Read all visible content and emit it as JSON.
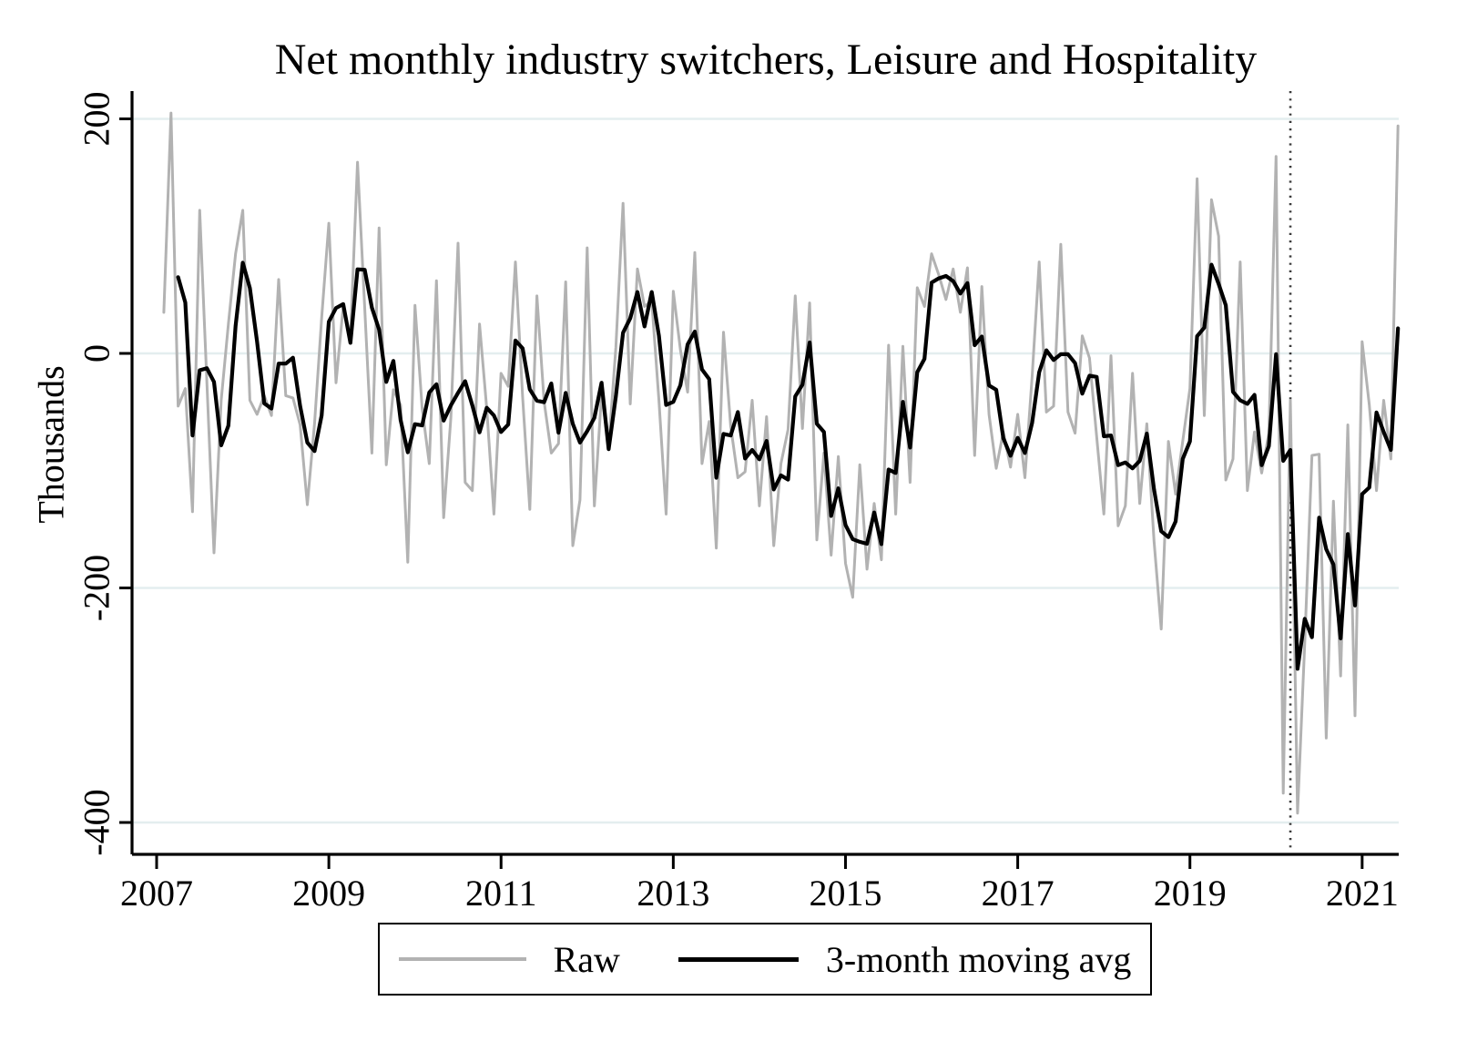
{
  "page": {
    "background": "#ffffff"
  },
  "chart_data": {
    "type": "line",
    "title": "Net monthly industry switchers, Leisure and Hospitality",
    "xlabel": "",
    "ylabel": "Thousands",
    "x_unit": "month",
    "x_start": "2007-02",
    "x_end": "2021-06",
    "x_tick_labels": [
      "2007",
      "2009",
      "2011",
      "2013",
      "2015",
      "2017",
      "2019",
      "2021"
    ],
    "y_tick_labels": [
      "200",
      "0",
      "-200",
      "-400"
    ],
    "y_ticks": [
      200,
      0,
      -200,
      -400
    ],
    "ylim": [
      -430,
      228
    ],
    "grid": true,
    "gridline_color": "#e4eeef",
    "axis_color": "#000000",
    "legend_position": "bottom",
    "vline": {
      "date": "2020-03",
      "style": "dotted",
      "color": "#3a3a3a"
    },
    "series": [
      {
        "name": "Raw",
        "color": "#b2b2b2",
        "start": "2007-02",
        "values": [
          35,
          205,
          -45,
          -30,
          -135,
          122,
          -25,
          -170,
          -40,
          25,
          85,
          122,
          -40,
          -52,
          -36,
          -53,
          63,
          -36,
          -38,
          -61,
          -129,
          -60,
          30,
          111,
          -25,
          40,
          12,
          163,
          39,
          -85,
          107,
          -95,
          -31,
          -44,
          -178,
          41,
          -47,
          -94,
          62,
          -140,
          -55,
          94,
          -110,
          -117,
          25,
          -47,
          -137,
          -17,
          -28,
          78,
          -37,
          -133,
          49,
          -41,
          -85,
          -77,
          61,
          -164,
          -125,
          90,
          -130,
          -35,
          -80,
          5,
          128,
          -43,
          72,
          40,
          45,
          -40,
          -137,
          53,
          3,
          -33,
          86,
          -94,
          -58,
          -166,
          18,
          -62,
          -106,
          -101,
          -40,
          -130,
          -54,
          -164,
          -94,
          -65,
          49,
          -64,
          43,
          -159,
          -85,
          -172,
          -88,
          -179,
          -208,
          -95,
          -184,
          -128,
          -176,
          7,
          -137,
          6,
          -110,
          56,
          40,
          85,
          67,
          46,
          72,
          35,
          73,
          -87,
          57,
          -52,
          -98,
          -67,
          -97,
          -52,
          -106,
          -20,
          78,
          -50,
          -45,
          93,
          -50,
          -68,
          15,
          -4,
          -71,
          -137,
          -2,
          -147,
          -130,
          -17,
          -128,
          -60,
          -160,
          -235,
          -75,
          -120,
          -75,
          -30,
          149,
          -53,
          131,
          100,
          -108,
          -90,
          78,
          -117,
          -67,
          -102,
          -68,
          168,
          -375,
          -40,
          -392,
          -247,
          -87,
          -86,
          -328,
          -126,
          -275,
          -61,
          -309,
          10,
          -44,
          -117,
          -40,
          -90,
          194
        ]
      },
      {
        "name": "3-month moving avg",
        "color": "#000000",
        "derived": "3-month moving average of Raw series",
        "window": 3
      }
    ]
  }
}
